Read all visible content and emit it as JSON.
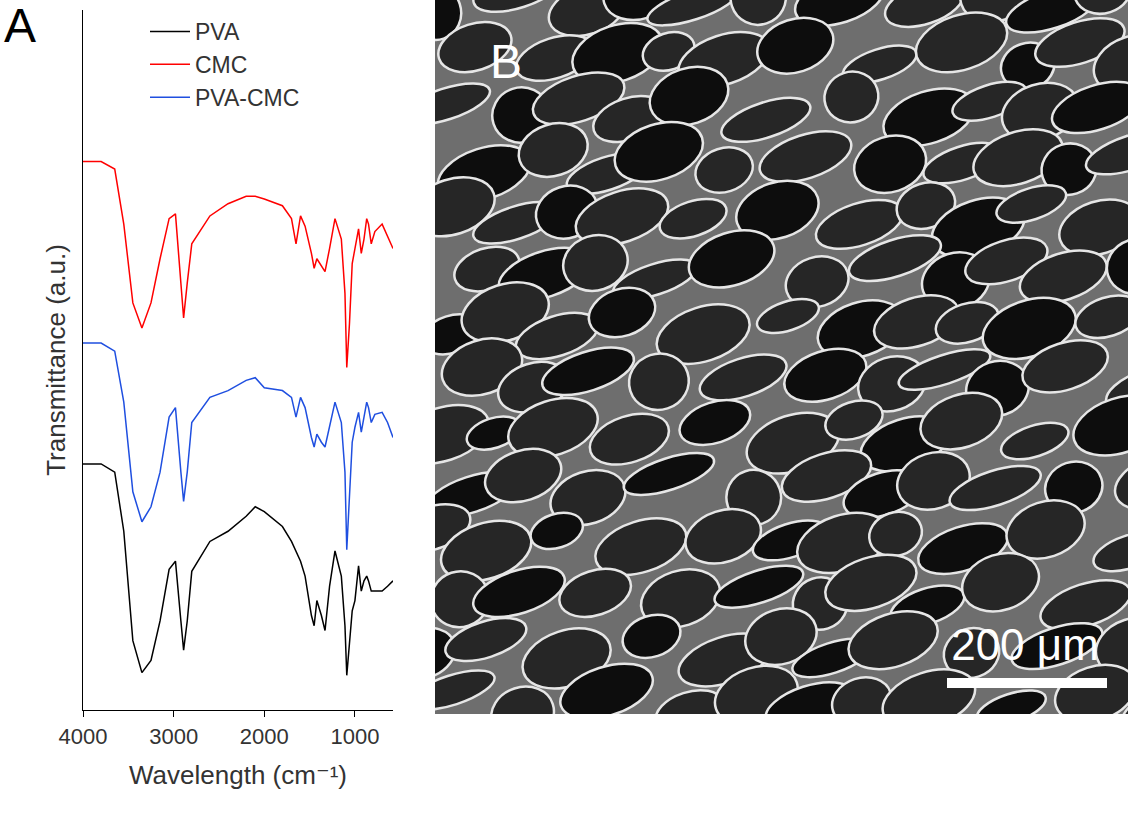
{
  "chart_data": {
    "type": "line",
    "x_title": "Wavelength (cm⁻¹)",
    "y_title": "Transmittance (a.u.)",
    "x": [
      4000,
      3800,
      3650,
      3550,
      3450,
      3350,
      3250,
      3150,
      3050,
      2980,
      2920,
      2890,
      2850,
      2800,
      2600,
      2400,
      2200,
      2100,
      2000,
      1800,
      1700,
      1650,
      1600,
      1550,
      1480,
      1450,
      1420,
      1370,
      1330,
      1280,
      1220,
      1150,
      1110,
      1090,
      1060,
      1030,
      1000,
      960,
      930,
      900,
      870,
      850,
      820,
      780,
      700,
      640,
      580
    ],
    "series": [
      {
        "name": "PVA",
        "color": "#000000",
        "values": [
          3.62,
          3.62,
          3.5,
          2.63,
          1.02,
          0.55,
          0.73,
          1.31,
          2.07,
          2.19,
          1.31,
          0.88,
          1.31,
          2.04,
          2.48,
          2.63,
          2.85,
          2.99,
          2.92,
          2.7,
          2.48,
          2.34,
          2.19,
          1.97,
          1.39,
          1.24,
          1.61,
          1.39,
          1.17,
          1.82,
          2.34,
          1.97,
          1.24,
          0.51,
          1.02,
          1.46,
          1.61,
          2.12,
          1.75,
          1.9,
          1.97,
          1.9,
          1.75,
          1.75,
          1.75,
          1.82,
          1.9
        ]
      },
      {
        "name": "CMC",
        "color": "#ff0000",
        "values": [
          8.07,
          8.07,
          7.96,
          7.15,
          5.99,
          5.62,
          5.99,
          6.64,
          7.23,
          7.3,
          6.28,
          5.77,
          6.28,
          6.86,
          7.27,
          7.45,
          7.56,
          7.56,
          7.52,
          7.42,
          7.23,
          6.86,
          7.27,
          7.12,
          6.72,
          6.5,
          6.64,
          6.54,
          6.45,
          6.79,
          7.23,
          6.93,
          6.13,
          5.04,
          5.69,
          6.57,
          6.79,
          7.08,
          6.72,
          6.93,
          7.23,
          7.15,
          6.86,
          7.04,
          7.15,
          6.98,
          6.79
        ]
      },
      {
        "name": "PVA-CMC",
        "color": "#1f4fe0",
        "values": [
          5.4,
          5.4,
          5.28,
          4.53,
          3.21,
          2.77,
          2.99,
          3.5,
          4.31,
          4.45,
          3.5,
          3.07,
          3.5,
          4.23,
          4.6,
          4.7,
          4.85,
          4.89,
          4.74,
          4.7,
          4.6,
          4.31,
          4.6,
          4.45,
          4.01,
          3.87,
          4.06,
          3.94,
          3.87,
          4.16,
          4.53,
          4.23,
          3.5,
          2.36,
          3.07,
          3.94,
          4.16,
          4.38,
          4.09,
          4.31,
          4.53,
          4.45,
          4.23,
          4.35,
          4.38,
          4.23,
          4.01
        ]
      }
    ],
    "xlim": [
      4000,
      580
    ],
    "xticks": [
      4000,
      3000,
      2000,
      1000
    ],
    "ylim": [
      0,
      10.3
    ],
    "tick_labels": "x",
    "grid": false,
    "legend": "upper right"
  },
  "panel_a": {
    "letter": "A"
  },
  "panel_b": {
    "letter": "B",
    "scale_bar": "200 μm"
  }
}
